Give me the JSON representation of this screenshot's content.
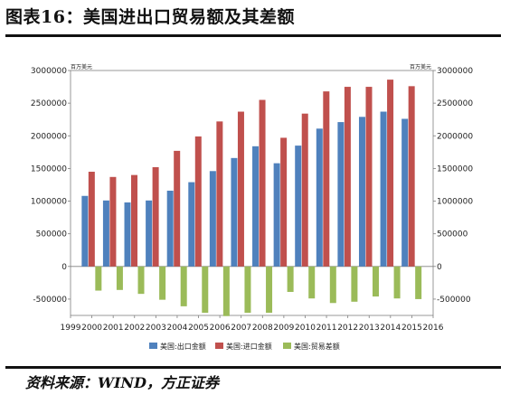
{
  "page": {
    "title": "图表16：美国进出口贸易额及其差额",
    "source": "资料来源：WIND，方正证券"
  },
  "chart_data": {
    "type": "bar",
    "title": "",
    "unit_left": "百万美元",
    "unit_right": "百万美元",
    "x_ticks": [
      "1999",
      "2000",
      "2001",
      "2002",
      "2003",
      "2004",
      "2005",
      "2006",
      "2007",
      "2008",
      "2009",
      "2010",
      "2011",
      "2012",
      "2013",
      "2014",
      "2015",
      "2016"
    ],
    "categories": [
      "2000",
      "2001",
      "2002",
      "2003",
      "2004",
      "2005",
      "2006",
      "2007",
      "2008",
      "2009",
      "2010",
      "2011",
      "2012",
      "2013",
      "2014",
      "2015"
    ],
    "y_ticks": [
      "3000000",
      "2500000",
      "2000000",
      "1500000",
      "1000000",
      "500000",
      "0",
      "-500000"
    ],
    "ylim": [
      -750000,
      3000000
    ],
    "grid": false,
    "legend_position": "bottom",
    "series": [
      {
        "name": "美国:出口金额",
        "color": "#4f81bd",
        "values": [
          1080000,
          1010000,
          980000,
          1010000,
          1160000,
          1290000,
          1460000,
          1660000,
          1840000,
          1580000,
          1850000,
          2110000,
          2210000,
          2290000,
          2370000,
          2260000
        ]
      },
      {
        "name": "美国:进口金额",
        "color": "#c0504d",
        "values": [
          1450000,
          1370000,
          1400000,
          1520000,
          1770000,
          1990000,
          2220000,
          2370000,
          2550000,
          1970000,
          2340000,
          2680000,
          2750000,
          2750000,
          2860000,
          2760000
        ]
      },
      {
        "name": "美国:贸易差额",
        "color": "#9bbb59",
        "values": [
          -370000,
          -360000,
          -420000,
          -510000,
          -610000,
          -710000,
          -760000,
          -710000,
          -710000,
          -390000,
          -490000,
          -560000,
          -540000,
          -460000,
          -490000,
          -500000
        ]
      }
    ]
  }
}
